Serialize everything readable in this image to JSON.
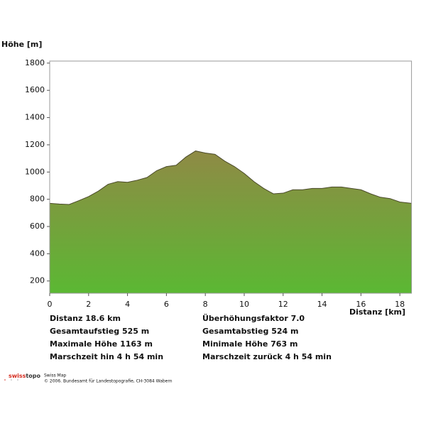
{
  "chart_data": {
    "type": "area",
    "y_label": "Höhe [m]",
    "x_label": "Distanz [km]",
    "x": [
      0,
      0.5,
      1,
      1.5,
      2,
      2.5,
      3,
      3.5,
      4,
      4.5,
      5,
      5.5,
      6,
      6.5,
      7,
      7.5,
      8,
      8.5,
      9,
      9.5,
      10,
      10.5,
      11,
      11.5,
      12,
      12.5,
      13,
      13.5,
      14,
      14.5,
      15,
      15.5,
      16,
      16.5,
      17,
      17.5,
      18,
      18.6
    ],
    "values": [
      770,
      765,
      762,
      790,
      820,
      860,
      910,
      930,
      925,
      940,
      960,
      1010,
      1040,
      1050,
      1110,
      1155,
      1140,
      1130,
      1080,
      1040,
      990,
      930,
      880,
      840,
      845,
      870,
      870,
      880,
      880,
      890,
      890,
      880,
      870,
      840,
      815,
      805,
      780,
      770
    ],
    "gradient": [
      "#8f8a45",
      "#5bb833"
    ],
    "xlim": [
      0,
      18.6
    ],
    "xticks": [
      0,
      2,
      4,
      6,
      8,
      10,
      12,
      14,
      16,
      18
    ],
    "ylim": [
      110,
      1815
    ],
    "yticks": [
      200,
      400,
      600,
      800,
      1000,
      1200,
      1400,
      1600,
      1800
    ],
    "annotations": [
      [
        "Distanz 18.6 km",
        "Überhöhungsfaktor 7.0"
      ],
      [
        "Gesamtaufstieg  525 m",
        "Gesamtabstieg  524 m"
      ],
      [
        "Maximale Höhe  1163 m",
        "Minimale Höhe  763 m"
      ],
      [
        "Marschzeit hin  4 h 54 min",
        "Marschzeit zurück  4 h 54 min"
      ]
    ]
  },
  "footer": {
    "brand_a": "swiss",
    "brand_b": "topo",
    "product": "Swiss Map",
    "copyright": "© 2006. Bundesamt für Landestopografie, CH-3084 Wabern"
  }
}
